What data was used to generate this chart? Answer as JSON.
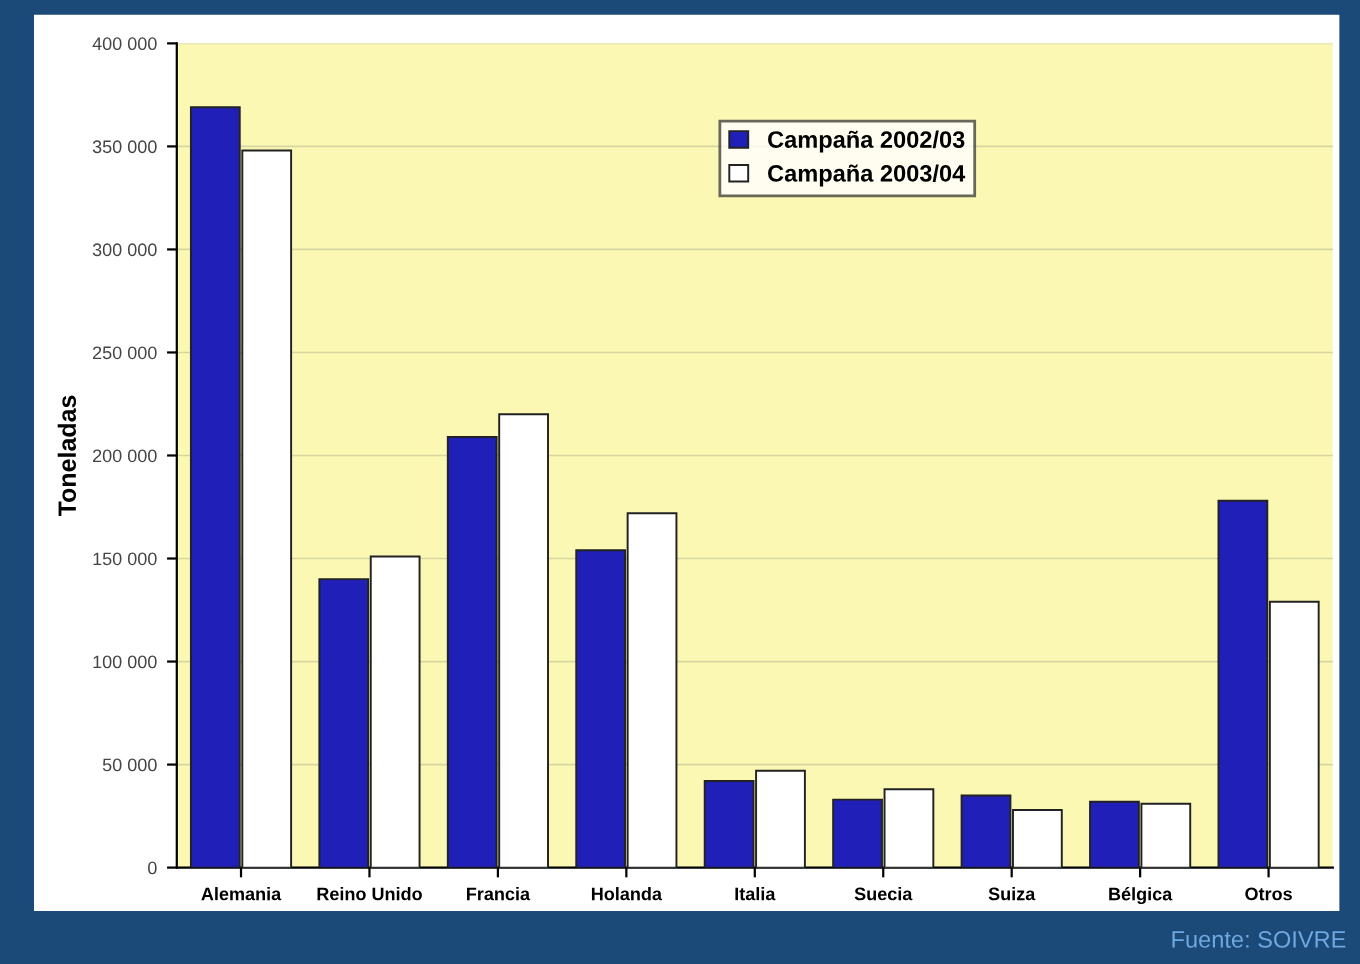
{
  "chart_data": {
    "type": "bar",
    "ylabel": "Toneladas",
    "categories": [
      "Alemania",
      "Reino Unido",
      "Francia",
      "Holanda",
      "Italia",
      "Suecia",
      "Suiza",
      "Bélgica",
      "Otros"
    ],
    "series": [
      {
        "name": "Campaña 2002/03",
        "color": "#2020b8",
        "values": [
          369000,
          140000,
          209000,
          154000,
          42000,
          33000,
          35000,
          32000,
          178000
        ]
      },
      {
        "name": "Campaña 2003/04",
        "color": "#ffffff",
        "values": [
          348000,
          151000,
          220000,
          172000,
          47000,
          38000,
          28000,
          31000,
          129000
        ]
      }
    ],
    "ylim": [
      0,
      400000
    ],
    "yticks": [
      {
        "value": 0,
        "label": "0"
      },
      {
        "value": 50000,
        "label": "50 000"
      },
      {
        "value": 100000,
        "label": "100 000"
      },
      {
        "value": 150000,
        "label": "150 000"
      },
      {
        "value": 200000,
        "label": "200 000"
      },
      {
        "value": 250000,
        "label": "250 000"
      },
      {
        "value": 300000,
        "label": "300 000"
      },
      {
        "value": 350000,
        "label": "350 000"
      },
      {
        "value": 400000,
        "label": "400 000"
      }
    ],
    "grid": "y",
    "legend": "top right",
    "annotations": [
      "Fuente: SOIVRE"
    ]
  }
}
